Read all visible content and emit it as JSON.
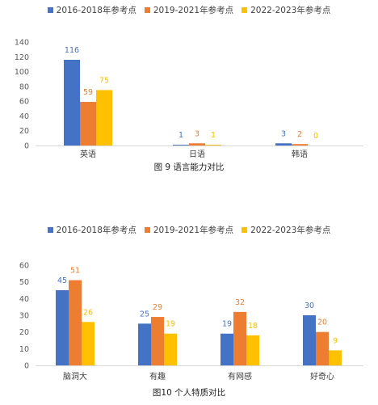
{
  "chart_data": [
    {
      "type": "bar",
      "caption": "图 9 语言能力对比",
      "categories": [
        "英语",
        "日语",
        "韩语"
      ],
      "series": [
        {
          "name": "2016-2018年参考点",
          "color": "#4472C4",
          "values": [
            116,
            1,
            3
          ]
        },
        {
          "name": "2019-2021年参考点",
          "color": "#ED7D31",
          "values": [
            59,
            3,
            2
          ]
        },
        {
          "name": "2022-2023年参考点",
          "color": "#FFC000",
          "values": [
            75,
            1,
            0
          ]
        }
      ],
      "yticks": [
        0,
        20,
        40,
        60,
        80,
        100,
        120,
        140
      ],
      "ylim": [
        0,
        140
      ],
      "legend_position": "top"
    },
    {
      "type": "bar",
      "caption": "图10 个人特质对比",
      "categories": [
        "脑洞大",
        "有趣",
        "有网感",
        "好奇心"
      ],
      "series": [
        {
          "name": "2016-2018年参考点",
          "color": "#4472C4",
          "values": [
            45,
            25,
            19,
            30
          ]
        },
        {
          "name": "2019-2021年参考点",
          "color": "#ED7D31",
          "values": [
            51,
            29,
            32,
            20
          ]
        },
        {
          "name": "2022-2023年参考点",
          "color": "#FFC000",
          "values": [
            26,
            19,
            18,
            9
          ]
        }
      ],
      "yticks": [
        0,
        10,
        20,
        30,
        40,
        50,
        60
      ],
      "ylim": [
        0,
        60
      ],
      "legend_position": "top"
    }
  ]
}
